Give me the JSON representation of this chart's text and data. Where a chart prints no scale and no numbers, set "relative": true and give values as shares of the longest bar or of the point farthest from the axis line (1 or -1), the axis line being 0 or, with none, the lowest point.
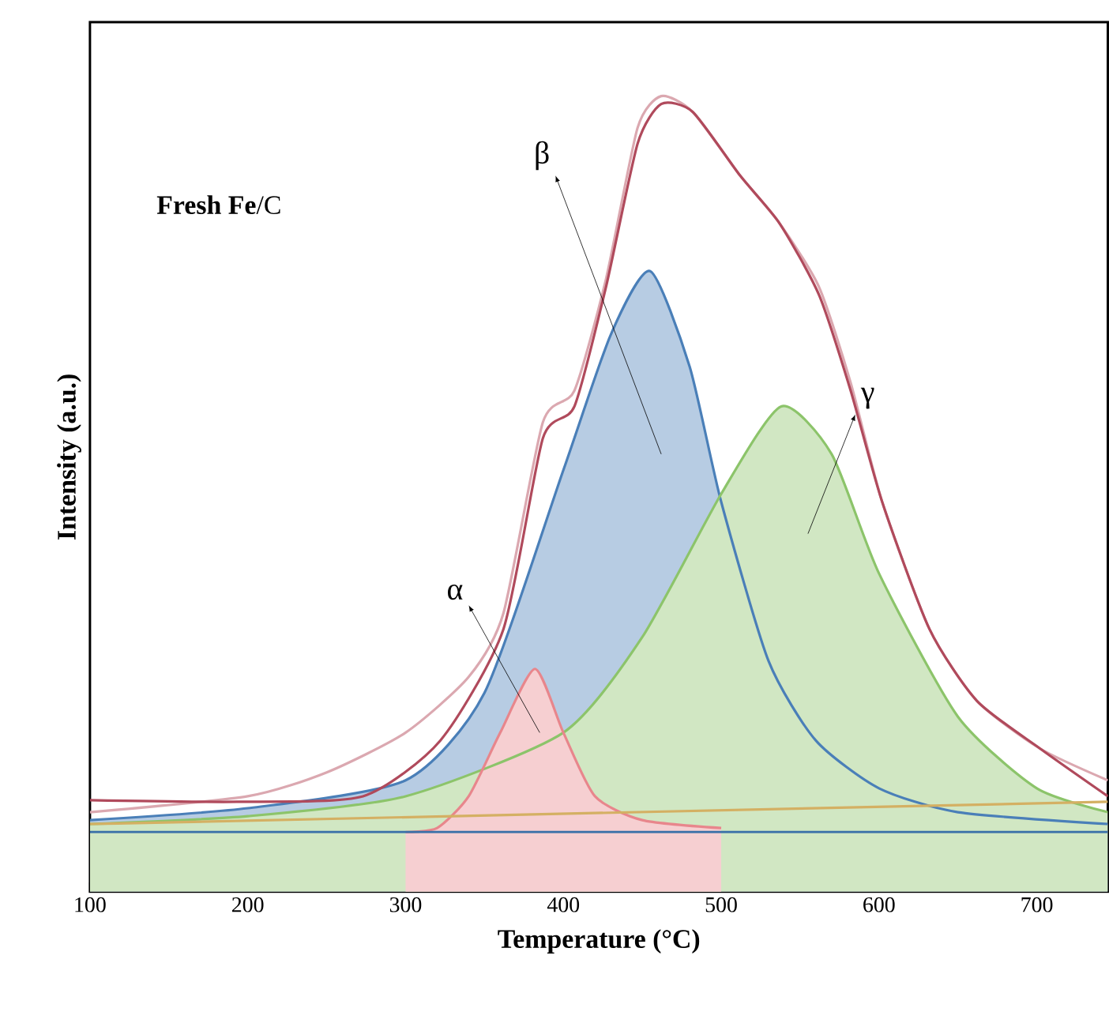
{
  "chart_data": {
    "type": "line",
    "relative": true,
    "xlabel": "Temperature (°C)",
    "ylabel": "Intensity (a.u.)",
    "xlim": [
      100,
      745
    ],
    "xticks": [
      100,
      200,
      300,
      400,
      500,
      600,
      700
    ],
    "grid": false,
    "marker": "none",
    "line_style": "solid",
    "annotations": [
      "**Fresh Fe**/C",
      "α",
      "β",
      "γ"
    ],
    "series": [
      {
        "type": "area",
        "color": "#4a7fb8",
        "x": [
          100,
          200,
          300,
          350,
          400,
          430,
          455,
          480,
          500,
          530,
          560,
          600,
          650,
          745
        ],
        "values": [
          0.09,
          0.105,
          0.14,
          0.25,
          0.53,
          0.7,
          0.78,
          0.66,
          0.49,
          0.29,
          0.19,
          0.13,
          0.1,
          0.085
        ]
      },
      {
        "type": "area",
        "color": "#8cc46a",
        "x": [
          100,
          200,
          300,
          400,
          450,
          500,
          538,
          570,
          600,
          650,
          700,
          745
        ],
        "values": [
          0.085,
          0.095,
          0.12,
          0.2,
          0.32,
          0.5,
          0.61,
          0.55,
          0.4,
          0.22,
          0.13,
          0.1
        ]
      },
      {
        "type": "area",
        "color": "#e8868c",
        "x": [
          300,
          320,
          340,
          360,
          382,
          400,
          420,
          450,
          500
        ],
        "values": [
          0.075,
          0.08,
          0.12,
          0.2,
          0.28,
          0.2,
          0.12,
          0.09,
          0.08
        ]
      },
      {
        "color": "#3a70a8",
        "x": [
          100,
          745
        ],
        "values": [
          0.075,
          0.075
        ]
      },
      {
        "color": "#d4b063",
        "x": [
          100,
          745
        ],
        "values": [
          0.085,
          0.113
        ]
      },
      {
        "color": "#dba8b0",
        "x": [
          100,
          200,
          250,
          300,
          340,
          362,
          387,
          407,
          427,
          447,
          462,
          482,
          512,
          537,
          562,
          582,
          602,
          632,
          662,
          702,
          745
        ],
        "values": [
          0.1,
          0.12,
          0.15,
          0.2,
          0.27,
          0.35,
          0.59,
          0.63,
          0.77,
          0.96,
          1.0,
          0.98,
          0.9,
          0.84,
          0.76,
          0.64,
          0.49,
          0.33,
          0.24,
          0.18,
          0.14
        ]
      },
      {
        "color": "#b04a5c",
        "x": [
          100,
          193,
          273,
          322,
          362,
          387,
          407,
          427,
          447,
          462,
          482,
          512,
          537,
          562,
          582,
          602,
          632,
          662,
          702,
          745
        ],
        "values": [
          0.115,
          0.113,
          0.12,
          0.19,
          0.33,
          0.57,
          0.61,
          0.76,
          0.94,
          0.99,
          0.98,
          0.9,
          0.84,
          0.75,
          0.63,
          0.49,
          0.33,
          0.24,
          0.18,
          0.12
        ]
      }
    ]
  }
}
